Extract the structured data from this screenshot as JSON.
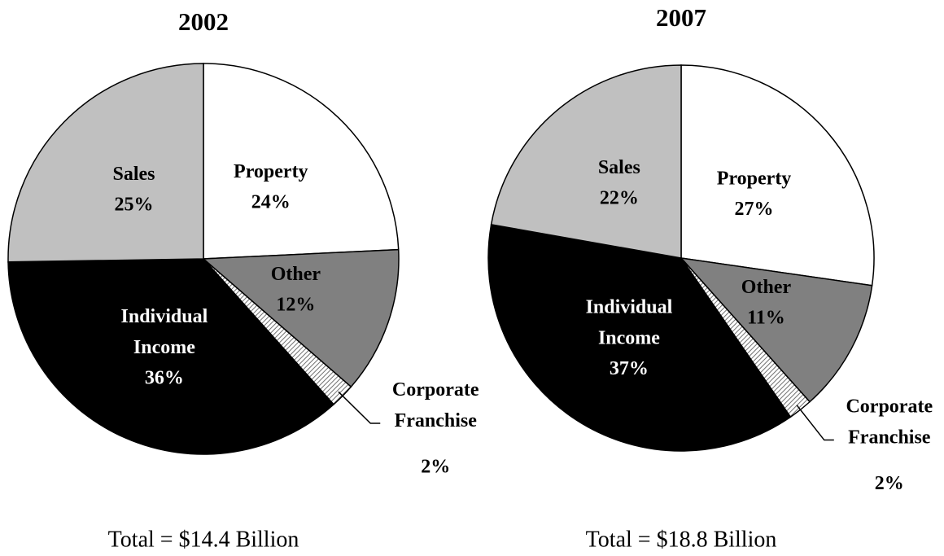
{
  "chart_data": [
    {
      "type": "pie",
      "title": "2002",
      "note": "Total = $14.4 Billion",
      "categories": [
        "Property",
        "Other",
        "Corporate Franchise",
        "Individual Income",
        "Sales"
      ],
      "values": [
        24,
        12,
        2,
        36,
        25
      ],
      "value_labels": [
        "24%",
        "12%",
        "2%",
        "36%",
        "25%"
      ],
      "colors": [
        "#ffffff",
        "#808080",
        "#707070",
        "#000000",
        "#c0c0c0"
      ]
    },
    {
      "type": "pie",
      "title": "2007",
      "note": "Total = $18.8 Billion",
      "categories": [
        "Property",
        "Other",
        "Corporate Franchise",
        "Individual Income",
        "Sales"
      ],
      "values": [
        27,
        11,
        2,
        37,
        22
      ],
      "value_labels": [
        "27%",
        "11%",
        "2%",
        "37%",
        "22%"
      ],
      "colors": [
        "#ffffff",
        "#808080",
        "#707070",
        "#000000",
        "#c0c0c0"
      ]
    }
  ]
}
